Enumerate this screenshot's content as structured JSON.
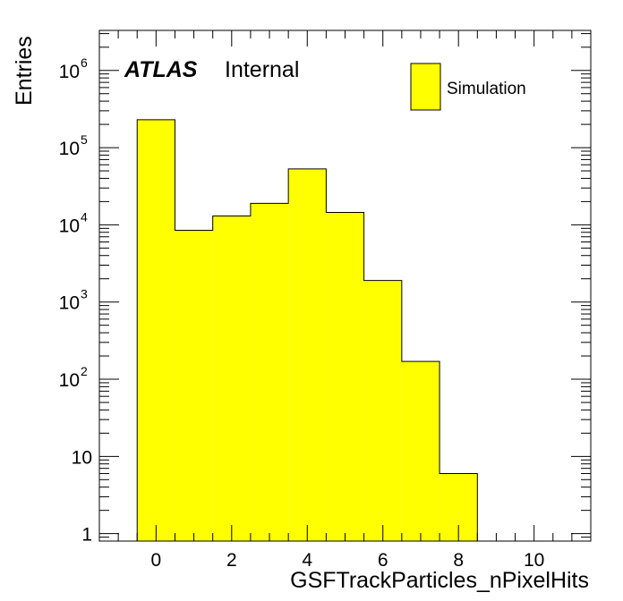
{
  "chart_data": {
    "type": "bar",
    "xlabel": "GSFTrackParticles_nPixelHits",
    "ylabel": "Entries",
    "xlim": [
      -1.5,
      11.5
    ],
    "ylim": [
      0.8,
      3300000
    ],
    "log_y": true,
    "grid": false,
    "legend_position": "top-right",
    "bin_width": 1,
    "bins": [
      0,
      1,
      2,
      3,
      4,
      5,
      6,
      7,
      8
    ],
    "values": [
      230000,
      8500,
      13000,
      19000,
      53000,
      14500,
      1900,
      170,
      6
    ],
    "x_ticks": [
      0,
      2,
      4,
      6,
      8,
      10
    ],
    "x_tick_labels": [
      "0",
      "2",
      "4",
      "6",
      "8",
      "10"
    ],
    "y_ticks": [
      {
        "base": "1",
        "exp": ""
      },
      {
        "base": "10",
        "exp": ""
      },
      {
        "base": "10",
        "exp": "2"
      },
      {
        "base": "10",
        "exp": "3"
      },
      {
        "base": "10",
        "exp": "4"
      },
      {
        "base": "10",
        "exp": "5"
      },
      {
        "base": "10",
        "exp": "6"
      }
    ],
    "series": [
      {
        "name": "Simulation",
        "color": "#ffff00",
        "edge_color": "#000000"
      }
    ],
    "annotation": {
      "experiment": "ATLAS",
      "status": "Internal"
    }
  }
}
